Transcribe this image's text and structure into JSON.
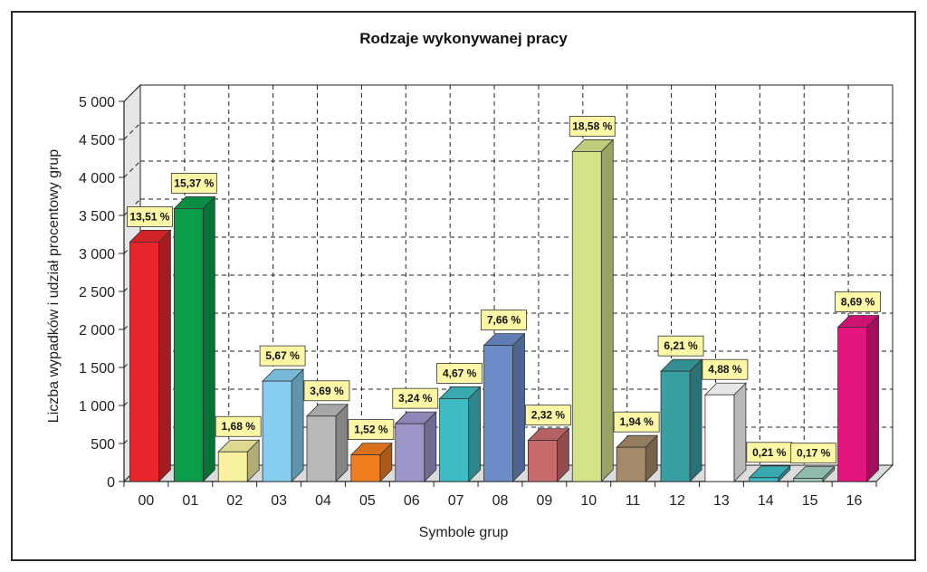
{
  "chart_data": {
    "type": "bar",
    "title": "Rodzaje wykonywanej pracy",
    "xlabel": "Symbole grup",
    "ylabel": "Liczba wypadków i udział procentowy grup",
    "ylim": [
      0,
      5000
    ],
    "yticks": [
      "0",
      "500",
      "1 000",
      "1 500",
      "2 000",
      "2 500",
      "3 000",
      "3 500",
      "4 000",
      "4 500",
      "5 000"
    ],
    "grid": true,
    "categories": [
      "00",
      "01",
      "02",
      "03",
      "04",
      "05",
      "06",
      "07",
      "08",
      "09",
      "10",
      "11",
      "12",
      "13",
      "14",
      "15",
      "16"
    ],
    "values": [
      3150,
      3590,
      390,
      1320,
      860,
      350,
      760,
      1090,
      1790,
      540,
      4340,
      450,
      1450,
      1140,
      50,
      40,
      2030
    ],
    "data_labels": [
      "13,51 %",
      "15,37 %",
      "1,68 %",
      "5,67 %",
      "3,69 %",
      "1,52 %",
      "3,24 %",
      "4,67 %",
      "7,66 %",
      "2,32 %",
      "18,58 %",
      "1,94 %",
      "6,21 %",
      "4,88 %",
      "0,21 %",
      "0,17 %",
      "8,69 %"
    ],
    "colors": [
      "#e8262c",
      "#0a9e4a",
      "#f7f1a0",
      "#86cdf0",
      "#b8b9bb",
      "#f07d1e",
      "#9c96c9",
      "#3fbcc4",
      "#6c8cc8",
      "#c96b6d",
      "#d4e38a",
      "#a58a6a",
      "#3a9fa3",
      "#ffffff",
      "#3fbcc4",
      "#9fcfc0",
      "#e3157f"
    ]
  }
}
